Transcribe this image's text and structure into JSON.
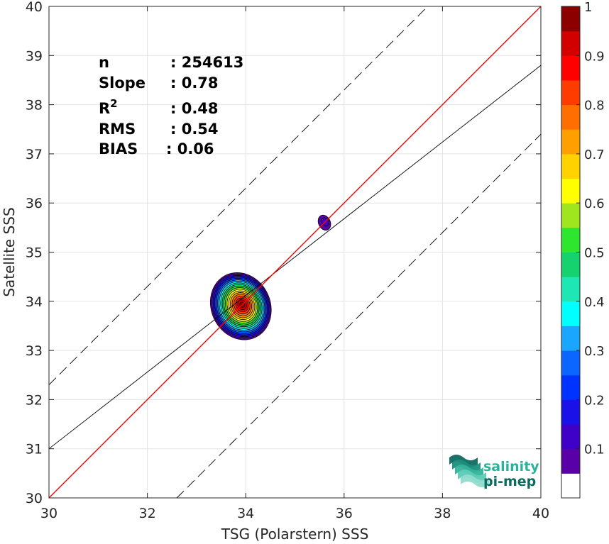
{
  "chart_data": {
    "type": "contour",
    "xlabel": "TSG (Polarstern) SSS",
    "ylabel": "Satellite SSS",
    "xlim": [
      30,
      40
    ],
    "ylim": [
      30,
      40
    ],
    "xticks": [
      "30",
      "32",
      "34",
      "36",
      "38",
      "40"
    ],
    "yticks": [
      "30",
      "31",
      "32",
      "33",
      "34",
      "35",
      "36",
      "37",
      "38",
      "39",
      "40"
    ],
    "grid": true,
    "stats": [
      {
        "key": "n",
        "value": ": 254613"
      },
      {
        "key": "Slope",
        "value": ": 0.78"
      },
      {
        "key": "R",
        "key_sup": "2",
        "value": ": 0.48"
      },
      {
        "key": "RMS",
        "value": ": 0.54"
      },
      {
        "key": "BIAS",
        "value": ": 0.06"
      }
    ],
    "lines": {
      "identity": {
        "color": "#ff0000",
        "slope": 1,
        "intercept": 0
      },
      "regression": {
        "color": "#000000",
        "slope": 0.78,
        "intercept": 7.6
      },
      "upper_dashed": {
        "slope": 1,
        "intercept": 2.3
      },
      "lower_dashed": {
        "slope": 1,
        "intercept": -2.6
      }
    },
    "density_clusters": [
      {
        "center": [
          33.9,
          33.9
        ],
        "radius_x": 0.6,
        "radius_y": 0.7,
        "peak": 1.0
      },
      {
        "center": [
          35.6,
          35.6
        ],
        "radius_x": 0.12,
        "radius_y": 0.16,
        "peak": 0.1
      }
    ],
    "colorbar": {
      "ticks": [
        "0.1",
        "0.2",
        "0.3",
        "0.4",
        "0.5",
        "0.6",
        "0.7",
        "0.8",
        "0.9",
        "1"
      ],
      "range": [
        0,
        1
      ],
      "colors": [
        "#ffffff",
        "#5a00a8",
        "#3f00c8",
        "#1a10e8",
        "#0033ff",
        "#0a66ff",
        "#1aa6ff",
        "#00ffff",
        "#1ee6b4",
        "#16d26e",
        "#2ee62e",
        "#a0e61e",
        "#ffff00",
        "#ffd200",
        "#ffa000",
        "#ff6e00",
        "#ff3c00",
        "#ff0000",
        "#d20000",
        "#8c0000"
      ]
    },
    "logo": {
      "line1": "salinity",
      "line2": "pi-mep"
    }
  }
}
